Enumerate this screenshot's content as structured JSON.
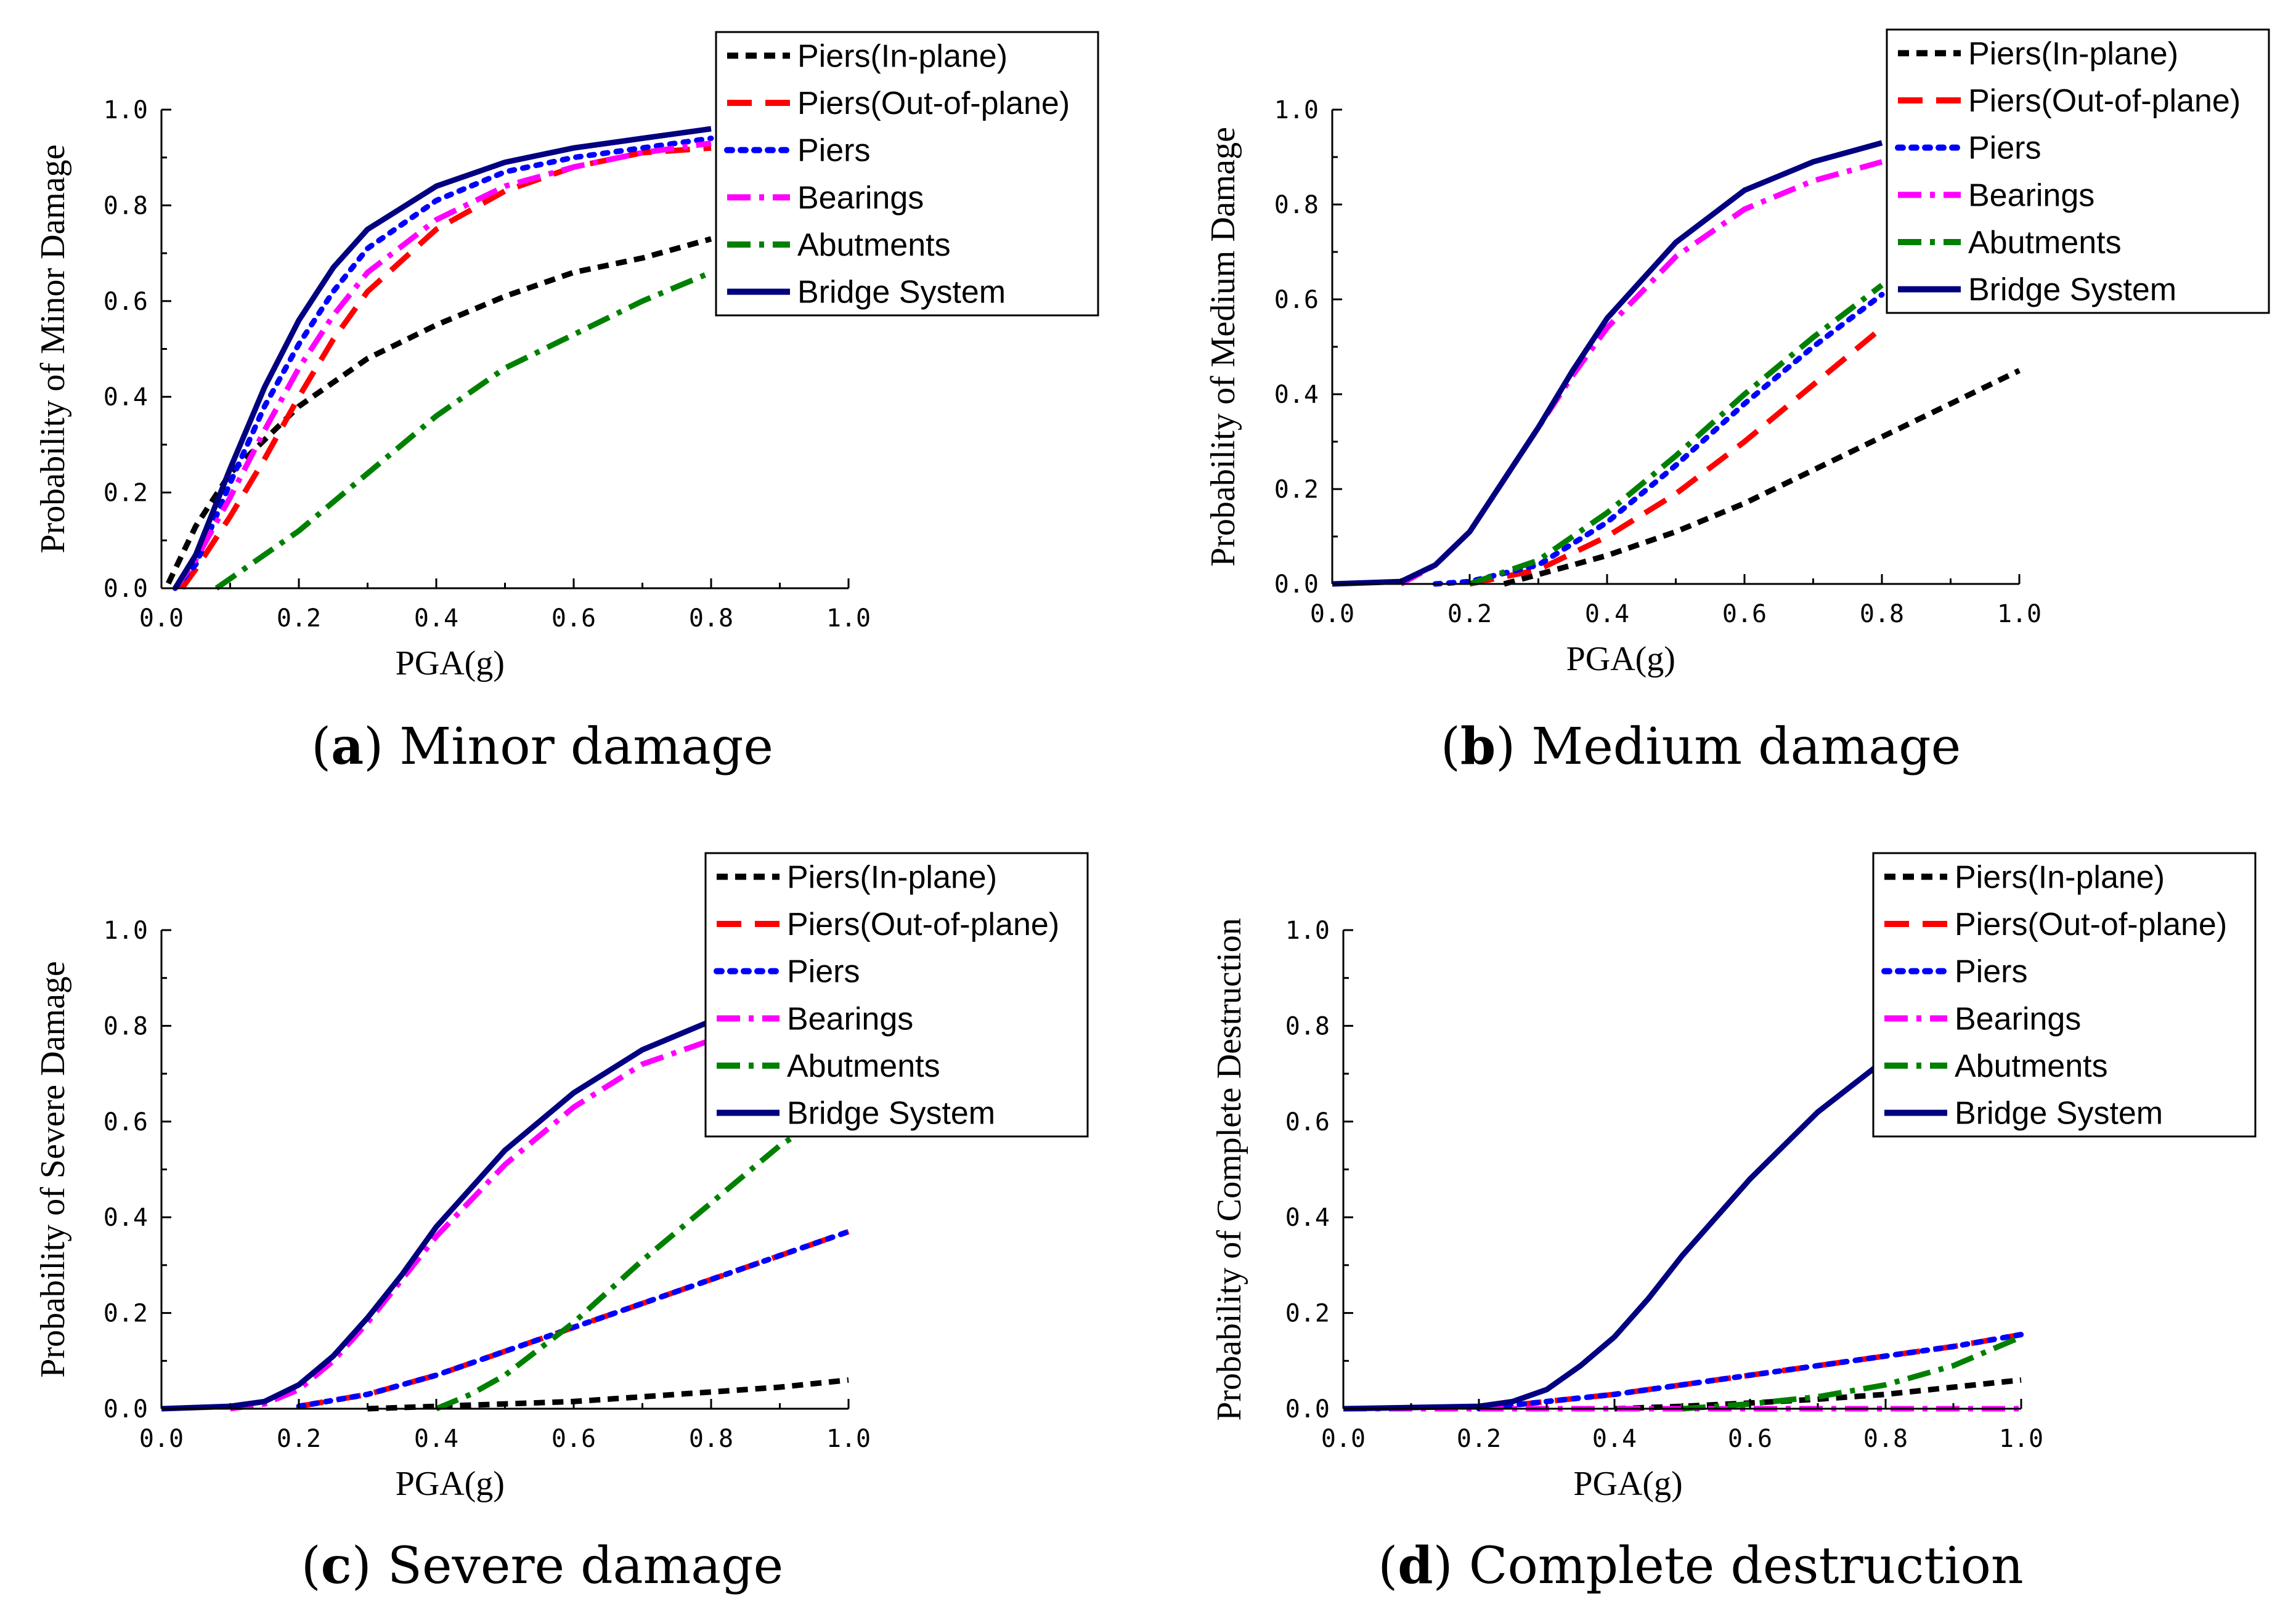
{
  "chart_data": [
    {
      "type": "line",
      "panel_label": "a",
      "caption": "Minor damage",
      "xlabel": "PGA(g)",
      "ylabel": "Probability of Minor Damage",
      "xlim": [
        0,
        1.0
      ],
      "ylim": [
        0,
        1.0
      ],
      "x_ticks": [
        "0.0",
        "0.2",
        "0.4",
        "0.6",
        "0.8",
        "1.0"
      ],
      "y_ticks": [
        "0.0",
        "0.2",
        "0.4",
        "0.6",
        "0.8",
        "1.0"
      ],
      "legend_position": "top-right",
      "series": [
        {
          "name": "Piers(In-plane)",
          "color": "#000000",
          "style": "short-dash",
          "x": [
            0.01,
            0.05,
            0.1,
            0.15,
            0.2,
            0.3,
            0.4,
            0.5,
            0.6,
            0.7,
            0.8
          ],
          "values": [
            0.01,
            0.13,
            0.24,
            0.31,
            0.38,
            0.48,
            0.55,
            0.61,
            0.66,
            0.69,
            0.73
          ]
        },
        {
          "name": "Piers(Out-of-plane)",
          "color": "#ff0000",
          "style": "long-dash",
          "x": [
            0.03,
            0.05,
            0.1,
            0.15,
            0.2,
            0.25,
            0.3,
            0.4,
            0.5,
            0.6,
            0.7,
            0.8
          ],
          "values": [
            0.0,
            0.04,
            0.15,
            0.27,
            0.4,
            0.52,
            0.62,
            0.75,
            0.83,
            0.88,
            0.91,
            0.92
          ]
        },
        {
          "name": "Piers",
          "color": "#0000ff",
          "style": "dot",
          "x": [
            0.02,
            0.05,
            0.1,
            0.15,
            0.2,
            0.25,
            0.3,
            0.4,
            0.5,
            0.6,
            0.7,
            0.8
          ],
          "values": [
            0.0,
            0.05,
            0.22,
            0.38,
            0.51,
            0.62,
            0.71,
            0.81,
            0.87,
            0.9,
            0.92,
            0.94
          ]
        },
        {
          "name": "Bearings",
          "color": "#ff00ff",
          "style": "dash-dot",
          "x": [
            0.02,
            0.05,
            0.1,
            0.15,
            0.2,
            0.25,
            0.3,
            0.4,
            0.5,
            0.6,
            0.7,
            0.8
          ],
          "values": [
            0.0,
            0.06,
            0.19,
            0.33,
            0.46,
            0.57,
            0.66,
            0.77,
            0.84,
            0.88,
            0.91,
            0.93
          ]
        },
        {
          "name": "Abutments",
          "color": "#008000",
          "style": "dash-dot",
          "x": [
            0.08,
            0.1,
            0.2,
            0.3,
            0.4,
            0.5,
            0.6,
            0.7,
            0.8
          ],
          "values": [
            0.0,
            0.02,
            0.12,
            0.24,
            0.36,
            0.46,
            0.53,
            0.6,
            0.66
          ]
        },
        {
          "name": "Bridge System",
          "color": "#000080",
          "style": "solid",
          "x": [
            0.02,
            0.05,
            0.1,
            0.15,
            0.2,
            0.25,
            0.3,
            0.4,
            0.5,
            0.6,
            0.7,
            0.8
          ],
          "values": [
            0.0,
            0.07,
            0.25,
            0.42,
            0.56,
            0.67,
            0.75,
            0.84,
            0.89,
            0.92,
            0.94,
            0.96
          ]
        }
      ]
    },
    {
      "type": "line",
      "panel_label": "b",
      "caption": "Medium damage",
      "xlabel": "PGA(g)",
      "ylabel": "Probability of Medium Damage",
      "xlim": [
        0,
        1.0
      ],
      "ylim": [
        0,
        1.0
      ],
      "x_ticks": [
        "0.0",
        "0.2",
        "0.4",
        "0.6",
        "0.8",
        "1.0"
      ],
      "y_ticks": [
        "0.0",
        "0.2",
        "0.4",
        "0.6",
        "0.8",
        "1.0"
      ],
      "legend_position": "top-right",
      "series": [
        {
          "name": "Piers(In-plane)",
          "color": "#000000",
          "style": "short-dash",
          "x": [
            0.25,
            0.3,
            0.4,
            0.5,
            0.6,
            0.7,
            0.8,
            0.9,
            1.0
          ],
          "values": [
            0.0,
            0.02,
            0.06,
            0.11,
            0.17,
            0.24,
            0.31,
            0.38,
            0.45
          ]
        },
        {
          "name": "Piers(Out-of-plane)",
          "color": "#ff0000",
          "style": "long-dash",
          "x": [
            0.2,
            0.3,
            0.4,
            0.5,
            0.6,
            0.7,
            0.8
          ],
          "values": [
            0.0,
            0.03,
            0.1,
            0.19,
            0.3,
            0.42,
            0.54
          ]
        },
        {
          "name": "Piers",
          "color": "#0000ff",
          "style": "dot",
          "x": [
            0.15,
            0.2,
            0.3,
            0.4,
            0.5,
            0.6,
            0.7,
            0.8
          ],
          "values": [
            0.0,
            0.005,
            0.04,
            0.13,
            0.25,
            0.38,
            0.5,
            0.61
          ]
        },
        {
          "name": "Bearings",
          "color": "#ff00ff",
          "style": "dash-dot",
          "x": [
            0.1,
            0.15,
            0.2,
            0.25,
            0.3,
            0.35,
            0.4,
            0.5,
            0.6,
            0.7,
            0.8
          ],
          "values": [
            0.0,
            0.04,
            0.11,
            0.22,
            0.33,
            0.44,
            0.54,
            0.69,
            0.79,
            0.85,
            0.89
          ]
        },
        {
          "name": "Abutments",
          "color": "#008000",
          "style": "dash-dot",
          "x": [
            0.2,
            0.3,
            0.4,
            0.5,
            0.6,
            0.7,
            0.8
          ],
          "values": [
            0.0,
            0.05,
            0.15,
            0.27,
            0.4,
            0.52,
            0.63
          ]
        },
        {
          "name": "Bridge System",
          "color": "#000080",
          "style": "solid",
          "x": [
            0.0,
            0.1,
            0.15,
            0.2,
            0.25,
            0.3,
            0.35,
            0.4,
            0.5,
            0.6,
            0.7,
            0.8
          ],
          "values": [
            0.0,
            0.005,
            0.04,
            0.11,
            0.22,
            0.33,
            0.45,
            0.56,
            0.72,
            0.83,
            0.89,
            0.93
          ]
        }
      ]
    },
    {
      "type": "line",
      "panel_label": "c",
      "caption": "Severe damage",
      "xlabel": "PGA(g)",
      "ylabel": "Probability of Severe Damage",
      "xlim": [
        0,
        1.0
      ],
      "ylim": [
        0,
        1.0
      ],
      "x_ticks": [
        "0.0",
        "0.2",
        "0.4",
        "0.6",
        "0.8",
        "1.0"
      ],
      "y_ticks": [
        "0.0",
        "0.2",
        "0.4",
        "0.6",
        "0.8",
        "1.0"
      ],
      "legend_position": "top-right",
      "series": [
        {
          "name": "Piers(In-plane)",
          "color": "#000000",
          "style": "short-dash",
          "x": [
            0.3,
            0.4,
            0.5,
            0.6,
            0.7,
            0.8,
            0.9,
            1.0
          ],
          "values": [
            0.0,
            0.005,
            0.01,
            0.015,
            0.025,
            0.035,
            0.045,
            0.06
          ]
        },
        {
          "name": "Piers(Out-of-plane)",
          "color": "#ff0000",
          "style": "long-dash",
          "x": [
            0.2,
            0.3,
            0.4,
            0.5,
            0.6,
            0.7,
            0.8,
            0.9,
            1.0
          ],
          "values": [
            0.005,
            0.03,
            0.07,
            0.12,
            0.17,
            0.22,
            0.27,
            0.32,
            0.37
          ]
        },
        {
          "name": "Piers",
          "color": "#0000ff",
          "style": "dot",
          "x": [
            0.2,
            0.3,
            0.4,
            0.5,
            0.6,
            0.7,
            0.8,
            0.9,
            1.0
          ],
          "values": [
            0.005,
            0.03,
            0.07,
            0.12,
            0.17,
            0.22,
            0.27,
            0.32,
            0.37
          ]
        },
        {
          "name": "Bearings",
          "color": "#ff00ff",
          "style": "dash-dot",
          "x": [
            0.1,
            0.15,
            0.2,
            0.25,
            0.3,
            0.35,
            0.4,
            0.5,
            0.6,
            0.7,
            0.8
          ],
          "values": [
            0.0,
            0.01,
            0.04,
            0.1,
            0.18,
            0.27,
            0.36,
            0.51,
            0.63,
            0.72,
            0.77
          ]
        },
        {
          "name": "Abutments",
          "color": "#008000",
          "style": "dash-dot",
          "x": [
            0.4,
            0.45,
            0.5,
            0.6,
            0.7,
            0.8,
            0.9,
            1.0
          ],
          "values": [
            0.0,
            0.03,
            0.07,
            0.18,
            0.31,
            0.43,
            0.55,
            0.64
          ]
        },
        {
          "name": "Bridge System",
          "color": "#000080",
          "style": "solid",
          "x": [
            0.0,
            0.1,
            0.15,
            0.2,
            0.25,
            0.3,
            0.35,
            0.4,
            0.5,
            0.6,
            0.7,
            0.8
          ],
          "values": [
            0.0,
            0.005,
            0.015,
            0.05,
            0.11,
            0.19,
            0.28,
            0.38,
            0.54,
            0.66,
            0.75,
            0.81
          ]
        }
      ]
    },
    {
      "type": "line",
      "panel_label": "d",
      "caption": "Complete destruction",
      "xlabel": "PGA(g)",
      "ylabel": "Probability of Complete Destruction",
      "xlim": [
        0,
        1.0
      ],
      "ylim": [
        0,
        1.0
      ],
      "x_ticks": [
        "0.0",
        "0.2",
        "0.4",
        "0.6",
        "0.8",
        "1.0"
      ],
      "y_ticks": [
        "0.0",
        "0.2",
        "0.4",
        "0.6",
        "0.8",
        "1.0"
      ],
      "legend_position": "top-right",
      "series": [
        {
          "name": "Piers(In-plane)",
          "color": "#000000",
          "style": "short-dash",
          "x": [
            0.4,
            0.5,
            0.6,
            0.7,
            0.8,
            0.9,
            1.0
          ],
          "values": [
            0.0,
            0.005,
            0.012,
            0.02,
            0.03,
            0.045,
            0.06
          ]
        },
        {
          "name": "Piers(Out-of-plane)",
          "color": "#ff0000",
          "style": "long-dash",
          "x": [
            0.2,
            0.3,
            0.4,
            0.5,
            0.6,
            0.7,
            0.8,
            0.9,
            1.0
          ],
          "values": [
            0.0,
            0.015,
            0.03,
            0.05,
            0.07,
            0.09,
            0.11,
            0.13,
            0.155
          ]
        },
        {
          "name": "Piers",
          "color": "#0000ff",
          "style": "dot",
          "x": [
            0.2,
            0.3,
            0.4,
            0.5,
            0.6,
            0.7,
            0.8,
            0.9,
            1.0
          ],
          "values": [
            0.0,
            0.015,
            0.03,
            0.05,
            0.07,
            0.09,
            0.11,
            0.13,
            0.155
          ]
        },
        {
          "name": "Bearings",
          "color": "#ff00ff",
          "style": "dash-dot",
          "x": [
            0.0,
            1.0
          ],
          "values": [
            0.0,
            0.0
          ]
        },
        {
          "name": "Abutments",
          "color": "#008000",
          "style": "dash-dot",
          "x": [
            0.5,
            0.6,
            0.7,
            0.8,
            0.9,
            1.0
          ],
          "values": [
            0.0,
            0.01,
            0.025,
            0.05,
            0.09,
            0.15
          ]
        },
        {
          "name": "Bridge System",
          "color": "#000080",
          "style": "solid",
          "x": [
            0.0,
            0.2,
            0.25,
            0.3,
            0.35,
            0.4,
            0.45,
            0.5,
            0.55,
            0.6,
            0.7,
            0.8
          ],
          "values": [
            0.0,
            0.005,
            0.015,
            0.04,
            0.09,
            0.15,
            0.23,
            0.32,
            0.4,
            0.48,
            0.62,
            0.73
          ]
        }
      ]
    }
  ]
}
